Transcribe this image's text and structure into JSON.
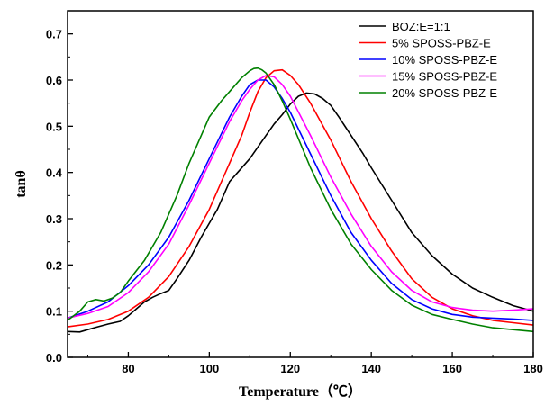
{
  "chart_data": {
    "type": "line",
    "xlabel": "Temperature（℃）",
    "ylabel": "tanθ",
    "xlim": [
      65,
      180
    ],
    "ylim": [
      0.0,
      0.75
    ],
    "xticks": [
      80,
      100,
      120,
      140,
      160,
      180
    ],
    "yticks": [
      0.0,
      0.1,
      0.2,
      0.3,
      0.4,
      0.5,
      0.6,
      0.7
    ],
    "xtick_labels": [
      "80",
      "100",
      "120",
      "140",
      "160",
      "180"
    ],
    "ytick_labels": [
      "0.0",
      "0.1",
      "0.2",
      "0.3",
      "0.4",
      "0.5",
      "0.6",
      "0.7"
    ],
    "grid": false,
    "legend_position": "top-right",
    "series": [
      {
        "name": "BOZ:E=1:1",
        "color": "#000000",
        "x": [
          65,
          68,
          70,
          72,
          75,
          78,
          80,
          82,
          84,
          86,
          88,
          90,
          92,
          95,
          98,
          100,
          102,
          104,
          105,
          107,
          110,
          112,
          114,
          116,
          118,
          120,
          122,
          124,
          126,
          128,
          130,
          132,
          135,
          138,
          140,
          145,
          150,
          155,
          160,
          165,
          170,
          175,
          180
        ],
        "y": [
          0.056,
          0.055,
          0.06,
          0.065,
          0.072,
          0.078,
          0.09,
          0.105,
          0.12,
          0.13,
          0.138,
          0.145,
          0.17,
          0.21,
          0.26,
          0.29,
          0.32,
          0.36,
          0.38,
          0.4,
          0.43,
          0.455,
          0.48,
          0.505,
          0.525,
          0.548,
          0.565,
          0.572,
          0.57,
          0.56,
          0.545,
          0.52,
          0.48,
          0.44,
          0.41,
          0.34,
          0.27,
          0.22,
          0.18,
          0.15,
          0.13,
          0.112,
          0.1
        ]
      },
      {
        "name": "5% SPOSS-PBZ-E",
        "color": "#ff0000",
        "x": [
          65,
          70,
          75,
          80,
          85,
          90,
          95,
          100,
          105,
          108,
          110,
          112,
          114,
          116,
          118,
          120,
          122,
          125,
          130,
          135,
          140,
          145,
          150,
          155,
          160,
          165,
          170,
          175,
          180
        ],
        "y": [
          0.066,
          0.072,
          0.082,
          0.1,
          0.13,
          0.175,
          0.24,
          0.32,
          0.42,
          0.48,
          0.53,
          0.575,
          0.605,
          0.62,
          0.622,
          0.61,
          0.59,
          0.55,
          0.47,
          0.38,
          0.3,
          0.23,
          0.17,
          0.13,
          0.105,
          0.09,
          0.08,
          0.075,
          0.07
        ]
      },
      {
        "name": "10% SPOSS-PBZ-E",
        "color": "#0000ff",
        "x": [
          65,
          70,
          75,
          80,
          85,
          90,
          95,
          100,
          105,
          108,
          110,
          112,
          114,
          116,
          118,
          120,
          125,
          130,
          135,
          140,
          145,
          150,
          155,
          160,
          165,
          170,
          175,
          180
        ],
        "y": [
          0.085,
          0.1,
          0.12,
          0.155,
          0.2,
          0.26,
          0.34,
          0.43,
          0.52,
          0.565,
          0.59,
          0.6,
          0.6,
          0.585,
          0.56,
          0.53,
          0.44,
          0.35,
          0.27,
          0.21,
          0.16,
          0.125,
          0.105,
          0.093,
          0.087,
          0.085,
          0.083,
          0.08
        ]
      },
      {
        "name": "15% SPOSS-PBZ-E",
        "color": "#ff00ff",
        "x": [
          65,
          70,
          75,
          80,
          85,
          90,
          95,
          100,
          105,
          108,
          110,
          112,
          114,
          116,
          118,
          120,
          125,
          130,
          135,
          140,
          145,
          150,
          155,
          160,
          165,
          170,
          175,
          180
        ],
        "y": [
          0.085,
          0.095,
          0.11,
          0.14,
          0.185,
          0.245,
          0.33,
          0.42,
          0.51,
          0.555,
          0.58,
          0.6,
          0.61,
          0.607,
          0.59,
          0.565,
          0.48,
          0.39,
          0.31,
          0.24,
          0.185,
          0.145,
          0.12,
          0.108,
          0.102,
          0.1,
          0.102,
          0.105
        ]
      },
      {
        "name": "20% SPOSS-PBZ-E",
        "color": "#008000",
        "x": [
          65,
          68,
          70,
          72,
          74,
          76,
          78,
          80,
          84,
          88,
          92,
          95,
          98,
          100,
          103,
          106,
          108,
          110,
          111,
          112,
          113,
          114,
          116,
          118,
          120,
          125,
          130,
          135,
          140,
          145,
          150,
          155,
          160,
          165,
          170,
          175,
          180
        ],
        "y": [
          0.08,
          0.1,
          0.12,
          0.125,
          0.122,
          0.128,
          0.14,
          0.165,
          0.21,
          0.27,
          0.35,
          0.42,
          0.48,
          0.52,
          0.555,
          0.585,
          0.605,
          0.62,
          0.625,
          0.626,
          0.622,
          0.615,
          0.59,
          0.555,
          0.515,
          0.41,
          0.32,
          0.245,
          0.19,
          0.145,
          0.113,
          0.093,
          0.082,
          0.072,
          0.064,
          0.06,
          0.056
        ]
      }
    ]
  }
}
